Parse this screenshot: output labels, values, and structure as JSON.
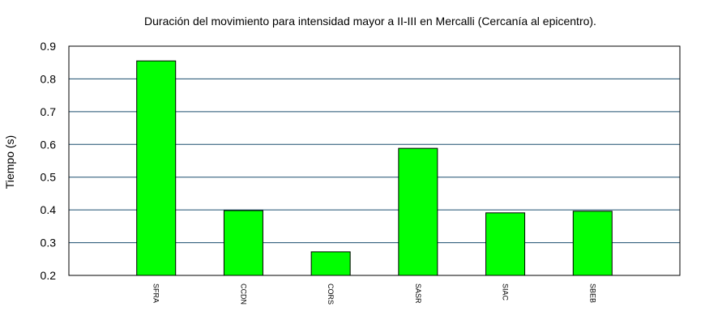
{
  "chart_data": {
    "type": "bar",
    "title": "Duración del movimiento para intensidad mayor a II-III en Mercalli (Cercanía al epicentro).",
    "xlabel": "",
    "ylabel": "Tiempo (s)",
    "categories": [
      "SFRA",
      "CCDN",
      "CORS",
      "SASR",
      "SIAC",
      "SBEB"
    ],
    "values": [
      0.855,
      0.398,
      0.272,
      0.588,
      0.391,
      0.396
    ],
    "ylim": [
      0.2,
      0.9
    ],
    "yticks": [
      "0.2",
      "0.3",
      "0.4",
      "0.5",
      "0.6",
      "0.7",
      "0.8",
      "0.9"
    ],
    "grid": "horizontal",
    "colors": {
      "bar_fill": "#00ff00",
      "bar_stroke": "#000000",
      "grid": "#1a4d6e",
      "frame": "#000000"
    }
  }
}
